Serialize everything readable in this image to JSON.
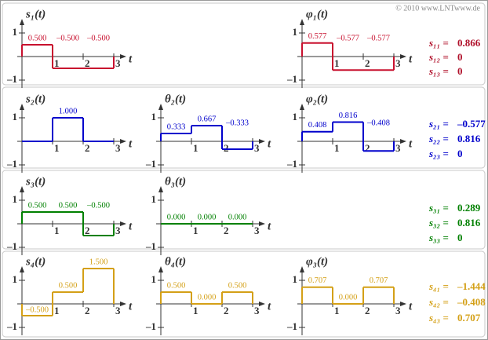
{
  "copyright": "© 2010 www.LNTwww.de",
  "chart_data": [
    {
      "type": "step",
      "title": "s₁(t)",
      "x_label": "t",
      "color": "#c8102e",
      "xlim": [
        0,
        3
      ],
      "xticks": [
        1,
        2,
        3
      ],
      "ylim": [
        -1,
        1
      ],
      "yticks": [
        1,
        {
          "value": -1,
          "label": "–1"
        }
      ],
      "values": [
        0.5,
        -0.5,
        -0.5
      ],
      "value_labels": [
        "0.500",
        "–0.500",
        "–0.500"
      ]
    },
    {
      "type": "step",
      "title": "φ₁(t)",
      "x_label": "t",
      "color": "#c8102e",
      "xlim": [
        0,
        3
      ],
      "xticks": [
        1,
        2,
        3
      ],
      "ylim": [
        -1,
        1
      ],
      "yticks": [
        1,
        {
          "value": -1,
          "label": "–1"
        }
      ],
      "values": [
        0.577,
        -0.577,
        -0.577
      ],
      "value_labels": [
        "0.577",
        "–0.577",
        "–0.577"
      ]
    },
    {
      "type": "step",
      "title": "s₂(t)",
      "x_label": "t",
      "color": "#0000cc",
      "xlim": [
        0,
        3
      ],
      "xticks": [
        1,
        2,
        3
      ],
      "ylim": [
        -1,
        1
      ],
      "yticks": [
        1,
        {
          "value": -1,
          "label": "–1"
        }
      ],
      "values": [
        0,
        1,
        0
      ],
      "value_labels": [
        null,
        "1.000",
        null
      ]
    },
    {
      "type": "step",
      "title": "θ₂(t)",
      "x_label": "t",
      "color": "#0000cc",
      "xlim": [
        0,
        3
      ],
      "xticks": [
        1,
        2,
        3
      ],
      "ylim": [
        -1,
        1
      ],
      "yticks": [
        1,
        {
          "value": -1,
          "label": "–1"
        }
      ],
      "values": [
        0.333,
        0.667,
        -0.333
      ],
      "value_labels": [
        "0.333",
        "0.667",
        "–0.333"
      ]
    },
    {
      "type": "step",
      "title": "φ₂(t)",
      "x_label": "t",
      "color": "#0000cc",
      "xlim": [
        0,
        3
      ],
      "xticks": [
        1,
        2,
        3
      ],
      "ylim": [
        -1,
        1
      ],
      "yticks": [
        1,
        {
          "value": -1,
          "label": "–1"
        }
      ],
      "values": [
        0.408,
        0.816,
        -0.408
      ],
      "value_labels": [
        "0.408",
        "0.816",
        "–0.408"
      ]
    },
    {
      "type": "step",
      "title": "s₃(t)",
      "x_label": "t",
      "color": "#008000",
      "xlim": [
        0,
        3
      ],
      "xticks": [
        1,
        2,
        3
      ],
      "ylim": [
        -1,
        1
      ],
      "yticks": [
        1,
        {
          "value": -1,
          "label": "–1"
        }
      ],
      "values": [
        0.5,
        0.5,
        -0.5
      ],
      "value_labels": [
        "0.500",
        "0.500",
        "–0.500"
      ]
    },
    {
      "type": "step",
      "title": "θ₃(t)",
      "x_label": "t",
      "color": "#008000",
      "xlim": [
        0,
        3
      ],
      "xticks": [
        1,
        2,
        3
      ],
      "ylim": [
        -1,
        1
      ],
      "yticks": [
        1,
        {
          "value": -1,
          "label": "–1"
        }
      ],
      "values": [
        0,
        0,
        0
      ],
      "value_labels": [
        "0.000",
        "0.000",
        "0.000"
      ]
    },
    {
      "type": "step",
      "title": "s₄(t)",
      "x_label": "t",
      "color": "#d4a017",
      "xlim": [
        0,
        3
      ],
      "xticks": [
        1,
        2,
        3
      ],
      "ylim": [
        -1,
        1
      ],
      "yticks": [
        1,
        {
          "value": -1,
          "label": "–1"
        }
      ],
      "values": [
        -0.5,
        0.5,
        1.5
      ],
      "value_labels": [
        "–0.500",
        "0.500",
        "1.500"
      ]
    },
    {
      "type": "step",
      "title": "θ₄(t)",
      "x_label": "t",
      "color": "#d4a017",
      "xlim": [
        0,
        3
      ],
      "xticks": [
        1,
        2,
        3
      ],
      "ylim": [
        -1,
        1
      ],
      "yticks": [
        1,
        {
          "value": -1,
          "label": "–1"
        }
      ],
      "values": [
        0.5,
        0,
        0.5
      ],
      "value_labels": [
        "0.500",
        "0.000",
        "0.500"
      ]
    },
    {
      "type": "step",
      "title": "φ₃(t)",
      "x_label": "t",
      "color": "#d4a017",
      "xlim": [
        0,
        3
      ],
      "xticks": [
        1,
        2,
        3
      ],
      "ylim": [
        -1,
        1
      ],
      "yticks": [
        1,
        {
          "value": -1,
          "label": "–1"
        }
      ],
      "values": [
        0.707,
        0,
        0.707
      ],
      "value_labels": [
        "0.707",
        "0.000",
        "0.707"
      ]
    }
  ],
  "coefficients": [
    {
      "color": "#b0102a",
      "items": [
        {
          "name": "s₁₁ =",
          "value": 0.866
        },
        {
          "name": "s₁₂ =",
          "value": 0
        },
        {
          "name": "s₁₃ =",
          "value": 0
        }
      ]
    },
    {
      "color": "#0000cc",
      "items": [
        {
          "name": "s₂₁ =",
          "value": -0.577,
          "value_label": "–0.577"
        },
        {
          "name": "s₂₂ =",
          "value": 0.816
        },
        {
          "name": "s₂₃ =",
          "value": 0
        }
      ]
    },
    {
      "color": "#008000",
      "items": [
        {
          "name": "s₃₁ =",
          "value": 0.289
        },
        {
          "name": "s₃₂ =",
          "value": 0.816
        },
        {
          "name": "s₃₃ =",
          "value": 0
        }
      ]
    },
    {
      "color": "#d4a017",
      "items": [
        {
          "name": "s₄₁ =",
          "value": -1.444,
          "value_label": "–1.444"
        },
        {
          "name": "s₄₂ =",
          "value": -0.408,
          "value_label": "–0.408"
        },
        {
          "name": "s₄₃ =",
          "value": 0.707
        }
      ]
    }
  ]
}
